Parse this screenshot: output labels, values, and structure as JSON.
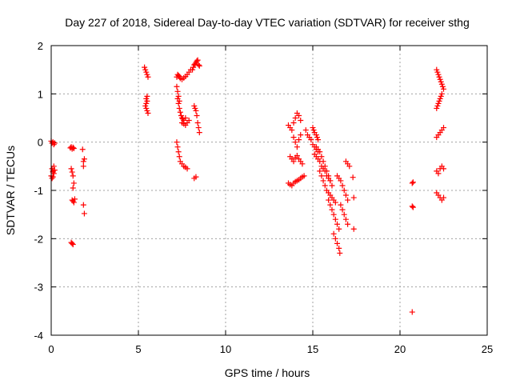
{
  "chart_data": {
    "type": "scatter",
    "title": "Day 227 of 2018, Sidereal Day-to-day VTEC variation (SDTVAR) for receiver sthg",
    "xlabel": "GPS time / hours",
    "ylabel": "SDTVAR / TECUs",
    "xlim": [
      0,
      25
    ],
    "ylim": [
      -4,
      2
    ],
    "xticks": [
      "0",
      "5",
      "10",
      "15",
      "20",
      "25"
    ],
    "yticks": [
      "-4",
      "-3",
      "-2",
      "-1",
      "0",
      "1",
      "2"
    ],
    "grid": true,
    "marker": "+",
    "color": "#ff0000",
    "series": [
      {
        "name": "SDTVAR",
        "x": [
          0.0,
          0.05,
          0.1,
          0.15,
          0.2,
          0.05,
          0.1,
          0.15,
          0.0,
          0.05,
          0.1,
          0.15,
          0.2,
          0.1,
          1.1,
          1.15,
          1.2,
          1.25,
          1.3,
          1.15,
          1.2,
          1.25,
          1.3,
          1.2,
          1.25,
          1.3,
          1.15,
          1.2,
          1.25,
          1.35,
          1.25,
          1.8,
          1.85,
          1.85,
          1.85,
          1.9,
          1.9,
          5.35,
          5.4,
          5.45,
          5.5,
          5.55,
          5.45,
          5.5,
          5.45,
          5.4,
          5.45,
          5.5,
          5.55,
          5.5,
          7.2,
          7.25,
          7.3,
          7.35,
          7.4,
          7.5,
          7.6,
          7.7,
          7.8,
          7.9,
          8.0,
          7.25,
          7.3,
          7.35,
          7.4,
          7.45,
          7.5,
          7.55,
          7.6,
          7.7,
          7.2,
          7.25,
          7.3,
          7.35,
          7.4,
          7.5,
          7.6,
          7.7,
          7.8,
          7.2,
          7.25,
          7.3,
          7.35,
          7.5,
          7.6,
          7.7,
          7.8,
          7.9,
          8.2,
          8.3,
          8.1,
          8.15,
          8.2,
          8.25,
          8.3,
          8.35,
          8.4,
          8.45,
          8.5,
          8.2,
          8.25,
          8.3,
          8.35,
          8.4,
          8.45,
          8.5,
          13.6,
          13.7,
          13.8,
          13.9,
          14.0,
          14.1,
          14.2,
          14.3,
          13.7,
          13.8,
          13.9,
          14.0,
          14.1,
          14.2,
          14.3,
          14.4,
          13.6,
          13.7,
          13.8,
          13.9,
          14.0,
          14.1,
          14.2,
          14.3,
          14.4,
          14.5,
          13.9,
          14.0,
          14.1,
          14.2,
          14.3,
          14.6,
          14.7,
          14.8,
          14.9,
          15.0,
          15.1,
          15.2,
          15.3,
          15.0,
          15.05,
          15.1,
          15.2,
          15.25,
          15.3,
          15.1,
          15.2,
          15.3,
          15.4,
          15.5,
          15.6,
          15.7,
          15.8,
          15.9,
          16.0,
          15.2,
          15.3,
          15.4,
          15.5,
          15.6,
          15.7,
          15.8,
          15.9,
          16.0,
          16.1,
          15.4,
          15.5,
          15.6,
          15.7,
          15.8,
          15.9,
          16.0,
          16.1,
          16.2,
          16.3,
          15.9,
          16.0,
          16.1,
          16.2,
          16.3,
          16.4,
          16.5,
          16.2,
          16.3,
          16.4,
          16.5,
          16.55,
          16.4,
          16.5,
          16.6,
          16.7,
          16.8,
          16.9,
          17.0,
          16.6,
          16.7,
          16.8,
          16.9,
          17.0,
          16.9,
          17.0,
          17.1,
          17.3,
          17.35,
          17.35,
          20.7,
          20.75,
          20.7,
          20.75,
          20.7,
          22.1,
          22.15,
          22.2,
          22.25,
          22.3,
          22.35,
          22.4,
          22.45,
          22.5,
          22.1,
          22.15,
          22.2,
          22.25,
          22.3,
          22.35,
          22.4,
          22.1,
          22.2,
          22.3,
          22.4,
          22.5,
          22.1,
          22.2,
          22.3,
          22.4,
          22.5,
          22.1,
          22.2,
          22.3,
          22.4,
          22.5
        ],
        "y": [
          0.02,
          -0.02,
          0.0,
          -0.05,
          -0.02,
          -0.55,
          -0.6,
          -0.65,
          -0.7,
          -0.75,
          -0.62,
          -0.5,
          -0.58,
          -0.72,
          -0.12,
          -0.1,
          -0.14,
          -0.11,
          -0.13,
          -0.55,
          -0.62,
          -0.7,
          -0.85,
          -1.2,
          -1.22,
          -1.25,
          -2.08,
          -2.1,
          -2.12,
          -1.18,
          -0.95,
          -0.15,
          -0.4,
          -0.5,
          -1.3,
          -1.48,
          -0.35,
          1.55,
          1.5,
          1.45,
          1.4,
          1.35,
          0.9,
          0.85,
          0.8,
          0.75,
          0.7,
          0.65,
          0.6,
          0.95,
          1.35,
          1.4,
          1.38,
          1.36,
          1.32,
          1.3,
          1.33,
          1.36,
          1.4,
          1.45,
          1.5,
          0.9,
          0.8,
          0.7,
          0.62,
          0.55,
          0.5,
          0.48,
          0.45,
          0.5,
          0.0,
          -0.1,
          -0.2,
          -0.3,
          -0.4,
          -0.45,
          -0.5,
          -0.52,
          -0.55,
          1.15,
          1.05,
          0.95,
          0.85,
          0.4,
          0.38,
          0.35,
          0.4,
          0.45,
          -0.75,
          -0.72,
          1.5,
          1.55,
          1.6,
          1.62,
          1.65,
          1.68,
          1.7,
          1.6,
          1.58,
          0.75,
          0.7,
          0.65,
          0.55,
          0.4,
          0.3,
          0.2,
          0.35,
          0.3,
          0.25,
          0.1,
          0.0,
          -0.1,
          0.05,
          0.15,
          -0.3,
          -0.35,
          -0.4,
          -0.32,
          -0.28,
          -0.35,
          -0.4,
          -0.45,
          -0.85,
          -0.88,
          -0.9,
          -0.85,
          -0.82,
          -0.8,
          -0.78,
          -0.75,
          -0.72,
          -0.7,
          0.4,
          0.5,
          0.6,
          0.55,
          0.45,
          0.25,
          0.15,
          0.1,
          0.05,
          -0.05,
          -0.1,
          -0.15,
          -0.2,
          0.3,
          0.25,
          0.2,
          0.15,
          0.1,
          0.05,
          -0.25,
          -0.3,
          -0.35,
          -0.4,
          -0.5,
          -0.55,
          -0.6,
          -0.7,
          -0.75,
          -0.8,
          -0.1,
          -0.15,
          -0.2,
          -0.3,
          -0.4,
          -0.5,
          -0.6,
          -0.7,
          -0.8,
          -0.9,
          -0.6,
          -0.7,
          -0.8,
          -0.9,
          -1.0,
          -1.05,
          -1.1,
          -1.15,
          -1.2,
          -1.25,
          -1.2,
          -1.3,
          -1.4,
          -1.5,
          -1.6,
          -1.7,
          -1.8,
          -1.9,
          -2.0,
          -2.1,
          -2.2,
          -2.3,
          -0.7,
          -0.75,
          -0.8,
          -0.9,
          -1.0,
          -1.1,
          -1.2,
          -1.3,
          -1.4,
          -1.5,
          -1.6,
          -1.7,
          -0.4,
          -0.45,
          -0.5,
          -0.73,
          -1.15,
          -1.8,
          -0.85,
          -0.83,
          -1.33,
          -1.35,
          -3.52,
          1.5,
          1.45,
          1.4,
          1.35,
          1.3,
          1.25,
          1.2,
          1.15,
          1.1,
          0.7,
          0.75,
          0.8,
          0.85,
          0.9,
          0.95,
          1.0,
          0.1,
          0.15,
          0.2,
          0.25,
          0.3,
          -0.6,
          -0.65,
          -0.55,
          -0.5,
          -0.55,
          -1.05,
          -1.1,
          -1.15,
          -1.2,
          -1.15
        ]
      }
    ]
  }
}
